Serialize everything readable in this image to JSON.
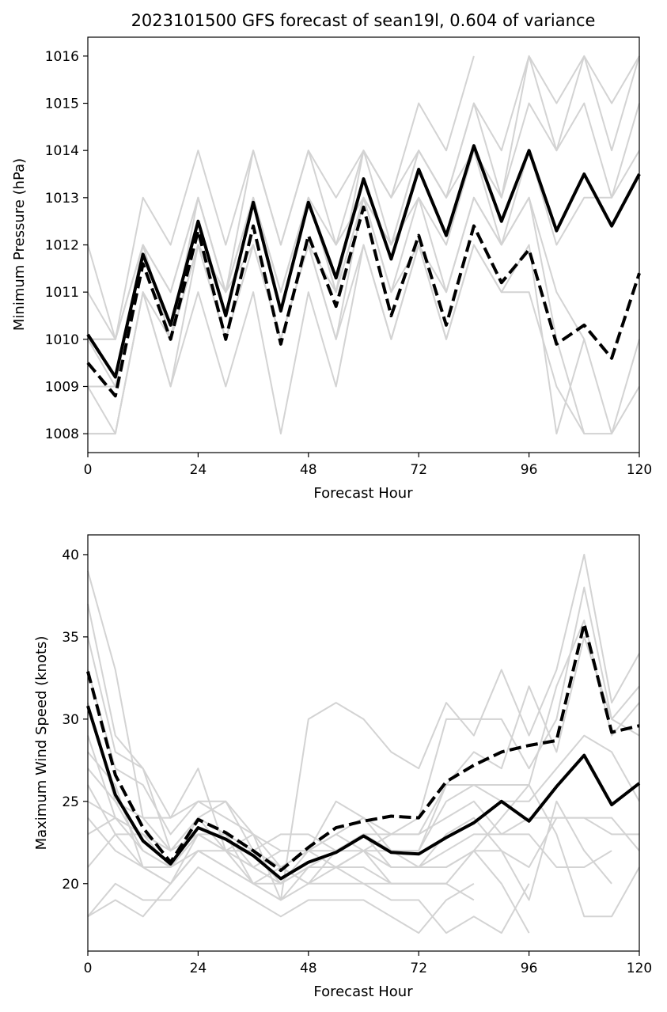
{
  "title": "2023101500 GFS forecast of sean19l, 0.604 of variance",
  "colors": {
    "ensemble": "#d3d3d3",
    "mean": "#000000",
    "reconstruction": "#000000"
  },
  "chart_data": [
    {
      "type": "line",
      "name": "pressure",
      "xlabel": "Forecast Hour",
      "ylabel": "Minimum Pressure (hPa)",
      "xlim": [
        0,
        120
      ],
      "ylim": [
        1007.6,
        1016.4
      ],
      "xticks": [
        0,
        24,
        48,
        72,
        96,
        120
      ],
      "yticks": [
        1008,
        1009,
        1010,
        1011,
        1012,
        1013,
        1014,
        1015,
        1016
      ],
      "x": [
        0,
        6,
        12,
        18,
        24,
        30,
        36,
        42,
        48,
        54,
        60,
        66,
        72,
        78,
        84,
        90,
        96,
        102,
        108,
        114,
        120
      ],
      "ensemble": [
        [
          1012,
          1010,
          1013,
          1012,
          1014,
          1012,
          1014,
          1012,
          1014,
          1013,
          1014,
          1013,
          1015,
          1014,
          1016
        ],
        [
          1011,
          1010,
          1012,
          1011,
          1013,
          1011,
          1014,
          1012,
          1014,
          1012,
          1014,
          1013,
          1014,
          1013,
          1015,
          1014,
          1016,
          1015,
          1016,
          1015,
          1016
        ],
        [
          1010,
          1010,
          1012,
          1011,
          1013,
          1011,
          1013,
          1011,
          1013,
          1012,
          1013,
          1012,
          1014,
          1013,
          1015,
          1013,
          1015,
          1014,
          1016,
          1014,
          1016
        ],
        [
          1010,
          1009,
          1012,
          1010,
          1013,
          1011,
          1013,
          1011,
          1013,
          1011,
          1014,
          1012,
          1014,
          1013,
          1014,
          1013,
          1016,
          1014,
          1015,
          1013,
          1015
        ],
        [
          1009,
          1009,
          1012,
          1010,
          1012,
          1011,
          1013,
          1011,
          1013,
          1011,
          1013,
          1012,
          1013,
          1012,
          1014,
          1012,
          1014,
          1012,
          1013,
          1013,
          1014
        ],
        [
          1009,
          1008,
          1011,
          1010,
          1012,
          1010,
          1012,
          1010,
          1012,
          1010,
          1013,
          1011,
          1013,
          1011,
          1013,
          1012,
          1013,
          1011,
          1010
        ],
        [
          1008,
          1008,
          1011,
          1009,
          1012,
          1010,
          1012,
          1010,
          1012,
          1010,
          1012,
          1010,
          1012,
          1010,
          1012,
          1011,
          1011,
          1009,
          1008
        ],
        [
          1008,
          1008,
          1011,
          1009,
          1011,
          1009,
          1011,
          1008,
          1011,
          1009,
          1012,
          1010,
          1012,
          1010,
          1012,
          1011,
          1012,
          1008,
          1010,
          1008,
          1009
        ],
        [
          1010,
          1010,
          1012,
          1010,
          1012,
          1011,
          1012,
          1010,
          1012,
          1011,
          1013,
          1011,
          1012,
          1011,
          1013,
          1012,
          1013,
          1010,
          1008,
          1008,
          1010
        ]
      ],
      "mean": [
        1010.1,
        1009.2,
        1011.8,
        1010.3,
        1012.5,
        1010.5,
        1012.9,
        1010.6,
        1012.9,
        1011.3,
        1013.4,
        1011.7,
        1013.6,
        1012.2,
        1014.1,
        1012.5,
        1014.0,
        1012.3,
        1013.5,
        1012.4,
        1013.5
      ],
      "reconstruction": [
        1009.5,
        1008.8,
        1011.6,
        1010.0,
        1012.3,
        1010.0,
        1012.4,
        1009.9,
        1012.2,
        1010.7,
        1012.8,
        1010.5,
        1012.2,
        1010.3,
        1012.4,
        1011.2,
        1011.9,
        1009.9,
        1010.3,
        1009.6,
        1011.4
      ]
    },
    {
      "type": "line",
      "name": "wind",
      "xlabel": "Forecast Hour",
      "ylabel": "Maximum Wind Speed (knots)",
      "xlim": [
        0,
        120
      ],
      "ylim": [
        15.9,
        41.2
      ],
      "xticks": [
        0,
        24,
        48,
        72,
        96,
        120
      ],
      "yticks": [
        20,
        25,
        30,
        35,
        40
      ],
      "x": [
        0,
        6,
        12,
        18,
        24,
        30,
        36,
        42,
        48,
        54,
        60,
        66,
        72,
        78,
        84,
        90,
        96,
        102,
        108,
        114,
        120
      ],
      "ensemble": [
        [
          39,
          33,
          24,
          24,
          27,
          22,
          23,
          19,
          30,
          31,
          30,
          28,
          27,
          31,
          29,
          33,
          29,
          33,
          40,
          31,
          34
        ],
        [
          37,
          29,
          27,
          24,
          25,
          25,
          23,
          22,
          22,
          23,
          24,
          23,
          24,
          30,
          30,
          30,
          27,
          30,
          38,
          30,
          32
        ],
        [
          35,
          28,
          27,
          22,
          24,
          25,
          22,
          23,
          23,
          22,
          23,
          23,
          23,
          26,
          26,
          26,
          26,
          32,
          36,
          29,
          31
        ],
        [
          33,
          27,
          26,
          23,
          25,
          24,
          23,
          21,
          22,
          25,
          24,
          22,
          22,
          26,
          28,
          27,
          32,
          28,
          35,
          30,
          29
        ],
        [
          31,
          25,
          24,
          22,
          24,
          23,
          22,
          21,
          22,
          22,
          23,
          22,
          22,
          25,
          26,
          25,
          25,
          27,
          29,
          28,
          25
        ],
        [
          29,
          24,
          22,
          21,
          23,
          22,
          22,
          20,
          21,
          22,
          22,
          23,
          23,
          24,
          25,
          23,
          24,
          24,
          24,
          24,
          22
        ],
        [
          28,
          26,
          21,
          20,
          23,
          22,
          21,
          22,
          22,
          21,
          22,
          22,
          21,
          22,
          23,
          23,
          23,
          21,
          21,
          22
        ],
        [
          27,
          25,
          22,
          21,
          22,
          22,
          22,
          21,
          20,
          22,
          23,
          21,
          21,
          23,
          24,
          22,
          21,
          24,
          24,
          23,
          23
        ],
        [
          26,
          23,
          23,
          22,
          24,
          23,
          21,
          20,
          21,
          21,
          22,
          21,
          21,
          21,
          22,
          22,
          19,
          25,
          22,
          20
        ],
        [
          25,
          24,
          23,
          22,
          23,
          22,
          21,
          20,
          22,
          23,
          22,
          21,
          21,
          21,
          22,
          24,
          26,
          23,
          18,
          18,
          21
        ],
        [
          24,
          22,
          21,
          20,
          22,
          21,
          20,
          19,
          20,
          21,
          22,
          20,
          20,
          20
        ],
        [
          23,
          24,
          23,
          21,
          23,
          23,
          20,
          20,
          21,
          21,
          21,
          20,
          20,
          20,
          19
        ],
        [
          21,
          23,
          21,
          21,
          24,
          22,
          20,
          21,
          20,
          20,
          20,
          19,
          19,
          17,
          18,
          17,
          20
        ],
        [
          18,
          20,
          19,
          19,
          21,
          20,
          19,
          18,
          19,
          19,
          19,
          18,
          17,
          19,
          20
        ],
        [
          18,
          19,
          18,
          20,
          22,
          21,
          20,
          19,
          21,
          21,
          20,
          20,
          20,
          20,
          22,
          20,
          17
        ]
      ],
      "mean": [
        30.8,
        25.4,
        22.6,
        21.2,
        23.4,
        22.7,
        21.7,
        20.3,
        21.3,
        21.9,
        22.9,
        21.9,
        21.8,
        22.8,
        23.7,
        25.0,
        23.8,
        25.9,
        27.8,
        24.8,
        26.1
      ],
      "reconstruction": [
        32.9,
        26.6,
        23.4,
        21.3,
        23.9,
        23.1,
        22.0,
        20.8,
        22.2,
        23.4,
        23.8,
        24.1,
        24.0,
        26.2,
        27.2,
        28.0,
        28.4,
        28.7,
        35.8,
        29.2,
        29.6
      ]
    }
  ]
}
